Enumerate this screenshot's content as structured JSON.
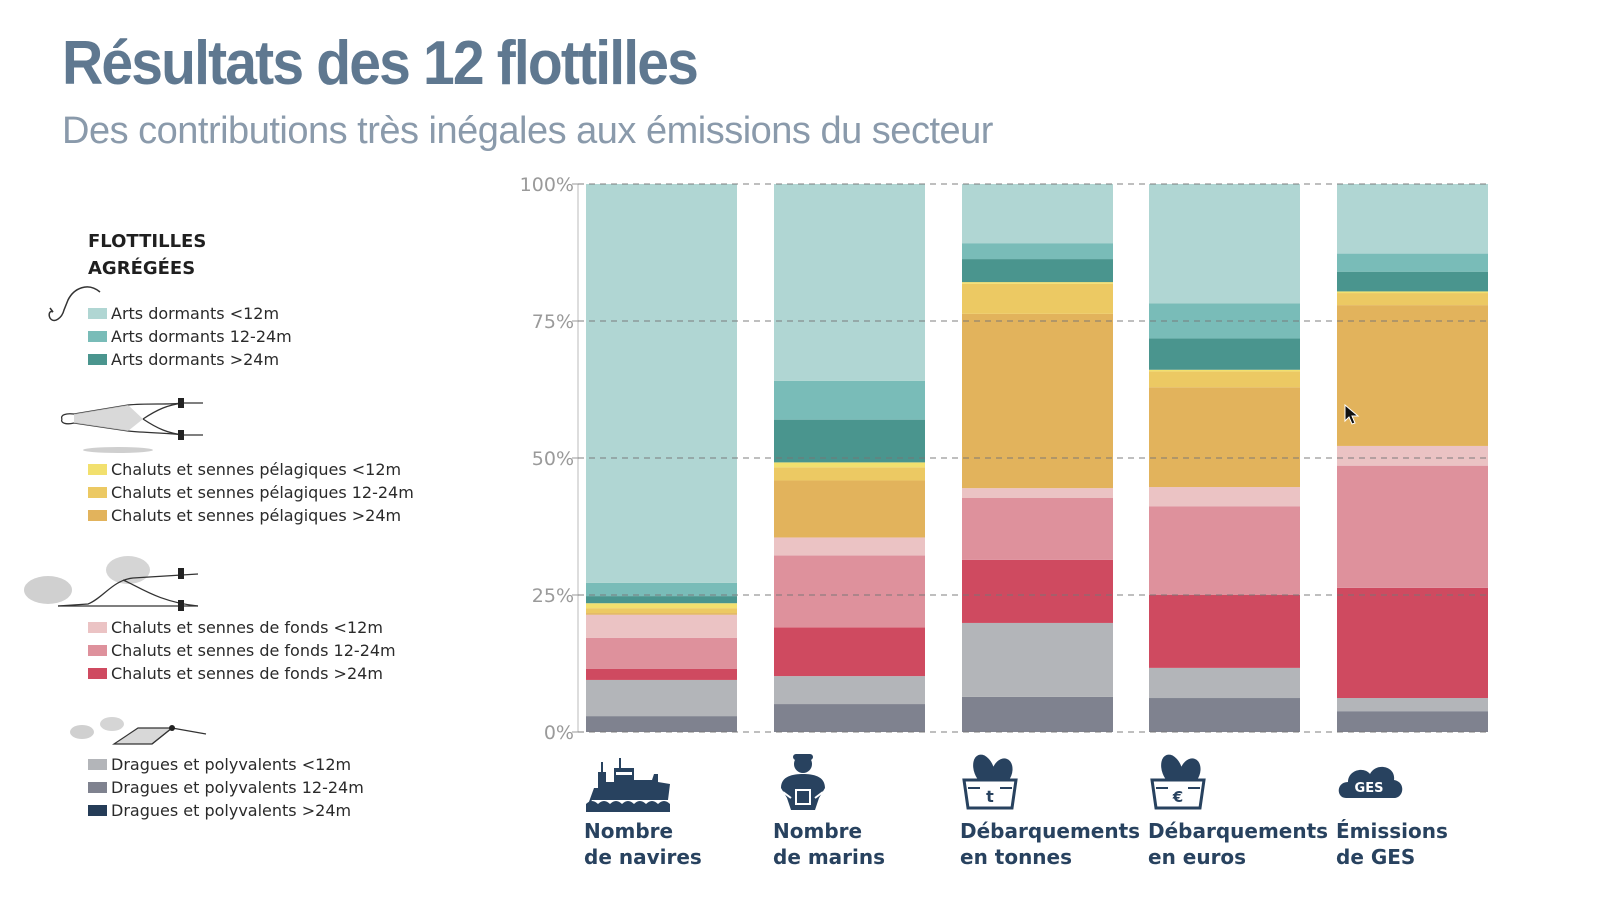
{
  "header": {
    "title": "Résultats des 12 flottilles",
    "subtitle": "Des contributions très inégales aux émissions du secteur"
  },
  "legend": {
    "heading_line1": "FLOTTILLES",
    "heading_line2": "AGRÉGÉES",
    "groups": [
      {
        "icon": "fishing-hook-icon",
        "items": [
          {
            "label": "Arts dormants <12m",
            "color": "#b0d6d3"
          },
          {
            "label": "Arts dormants 12-24m",
            "color": "#79bcb8"
          },
          {
            "label": "Arts dormants >24m",
            "color": "#4a958e"
          }
        ]
      },
      {
        "icon": "pelagic-trawl-icon",
        "items": [
          {
            "label": "Chaluts et sennes pélagiques <12m",
            "color": "#f2e06e"
          },
          {
            "label": "Chaluts et sennes pélagiques  12-24m",
            "color": "#ecc963"
          },
          {
            "label": "Chaluts et sennes pélagiques  >24m",
            "color": "#e2b35c"
          }
        ]
      },
      {
        "icon": "bottom-trawl-icon",
        "items": [
          {
            "label": "Chaluts et sennes de fonds <12m",
            "color": "#ebc3c4"
          },
          {
            "label": "Chaluts et sennes de fonds 12-24m",
            "color": "#de919c"
          },
          {
            "label": "Chaluts et sennes de fonds >24m",
            "color": "#cf4a60"
          }
        ]
      },
      {
        "icon": "dredge-icon",
        "items": [
          {
            "label": "Dragues et polyvalents <12m",
            "color": "#b3b5b9"
          },
          {
            "label": "Dragues et polyvalents 12-24m",
            "color": "#7f828f"
          },
          {
            "label": "Dragues et polyvalents >24m",
            "color": "#253c57"
          }
        ]
      }
    ]
  },
  "categories": [
    {
      "line1": "Nombre",
      "line2": "de navires",
      "icon": "fishing-vessel-icon"
    },
    {
      "line1": "Nombre",
      "line2": "de marins",
      "icon": "sailor-icon"
    },
    {
      "line1": "Débarquements",
      "line2": "en tonnes",
      "icon": "fish-crate-tonnes-icon",
      "icon_text": "t"
    },
    {
      "line1": "Débarquements",
      "line2": "en euros",
      "icon": "fish-crate-euros-icon",
      "icon_text": "€"
    },
    {
      "line1": "Émissions",
      "line2": "de GES",
      "icon": "ghg-cloud-icon",
      "icon_text": "GES"
    }
  ],
  "chart_data": {
    "type": "bar",
    "stacked": true,
    "normalized": true,
    "title": "Résultats des 12 flottilles",
    "subtitle": "Des contributions très inégales aux émissions du secteur",
    "categories": [
      "Nombre de navires",
      "Nombre de marins",
      "Débarquements en tonnes",
      "Débarquements en euros",
      "Émissions de GES"
    ],
    "ylim": [
      0,
      100
    ],
    "yticks": [
      "0%",
      "25%",
      "50%",
      "75%",
      "100%"
    ],
    "grid": "dashed horizontal",
    "legend_position": "left",
    "series": [
      {
        "name": "Dragues et polyvalents >24m",
        "color": "#253c57",
        "values": [
          0,
          0,
          0,
          0,
          0
        ]
      },
      {
        "name": "Dragues et polyvalents 12-24m",
        "color": "#7f828f",
        "values": [
          2.9,
          5.1,
          6.4,
          6.2,
          3.8
        ]
      },
      {
        "name": "Dragues et polyvalents <12m",
        "color": "#b3b5b9",
        "values": [
          6.6,
          5.1,
          13.5,
          5.5,
          2.4
        ]
      },
      {
        "name": "Chaluts et sennes de fonds >24m",
        "color": "#cf4a60",
        "values": [
          2.0,
          8.9,
          11.5,
          13.3,
          20.1
        ]
      },
      {
        "name": "Chaluts et sennes de fonds 12-24m",
        "color": "#de919c",
        "values": [
          5.7,
          13.1,
          11.3,
          16.2,
          22.3
        ]
      },
      {
        "name": "Chaluts et sennes de fonds <12m",
        "color": "#ebc3c4",
        "values": [
          4.2,
          3.3,
          1.8,
          3.5,
          3.6
        ]
      },
      {
        "name": "Chaluts et sennes pélagiques >24m",
        "color": "#e2b35c",
        "values": [
          0.3,
          10.4,
          31.8,
          18.2,
          25.7
        ]
      },
      {
        "name": "Chaluts et sennes pélagiques 12-24m",
        "color": "#ecc963",
        "values": [
          0.9,
          2.4,
          5.5,
          2.9,
          2.2
        ]
      },
      {
        "name": "Chaluts et sennes pélagiques <12m",
        "color": "#f2e06e",
        "values": [
          0.9,
          0.9,
          0.3,
          0.3,
          0.3
        ]
      },
      {
        "name": "Arts dormants >24m",
        "color": "#4a958e",
        "values": [
          1.3,
          7.8,
          4.2,
          5.7,
          3.6
        ]
      },
      {
        "name": "Arts dormants 12-24m",
        "color": "#79bcb8",
        "values": [
          2.4,
          7.1,
          2.9,
          6.4,
          3.3
        ]
      },
      {
        "name": "Arts dormants <12m",
        "color": "#b0d6d3",
        "values": [
          72.8,
          35.9,
          10.8,
          21.8,
          12.7
        ]
      }
    ]
  }
}
